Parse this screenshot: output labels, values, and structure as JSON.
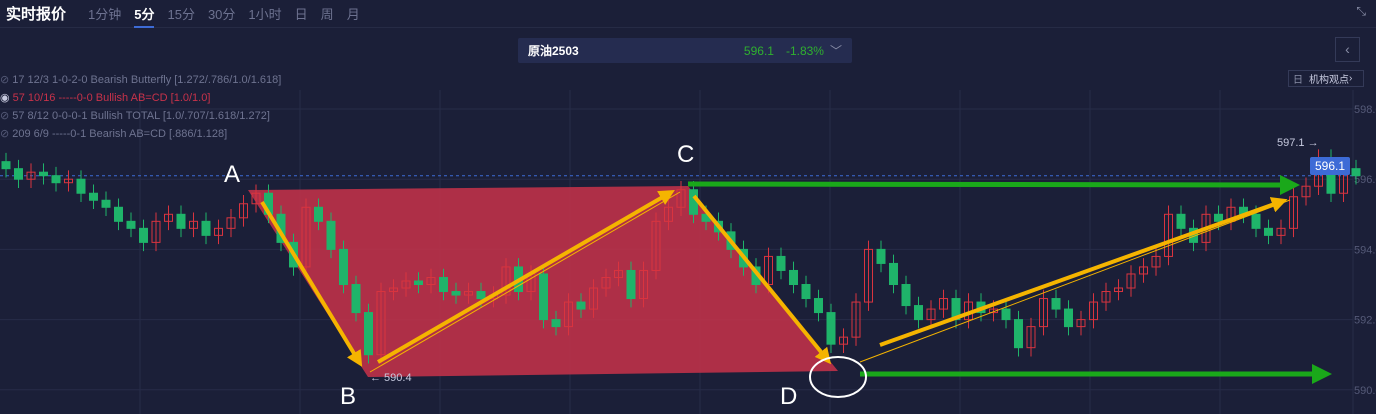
{
  "topbar": {
    "title": "实时报价",
    "tabs": [
      {
        "label": "1分钟"
      },
      {
        "label": "5分",
        "active": true
      },
      {
        "label": "15分"
      },
      {
        "label": "30分"
      },
      {
        "label": "1小时"
      },
      {
        "label": "日"
      },
      {
        "label": "周"
      },
      {
        "label": "月"
      }
    ]
  },
  "symbol": {
    "name": "原油2503",
    "price": "596.1",
    "change": "-1.83%"
  },
  "view_button": {
    "icon": "日",
    "label": "机构观点"
  },
  "patterns": [
    {
      "text": "17 12/3 1-0-2-0 Bearish Butterfly [1.272/.786/1.0/1.618]",
      "visible": false
    },
    {
      "text": "57 10/16 -----0-0 Bullish AB=CD [1.0/1.0]",
      "visible": true
    },
    {
      "text": "57 8/12 0-0-0-1 Bullish TOTAL [1.0/.707/1.618/1.272]",
      "visible": false
    },
    {
      "text": "209 6/9 -----0-1 Bearish AB=CD [.886/1.128]",
      "visible": false
    }
  ],
  "chart_data": {
    "type": "candlestick",
    "y_ticks": [
      "598.0",
      "596.0",
      "594.0",
      "592.0",
      "590.0"
    ],
    "ylim": [
      589.7,
      598.5
    ],
    "last_price": "596.1",
    "low_label": "← 590.4",
    "high_label": "597.1 →",
    "points": {
      "A": "A",
      "B": "B",
      "C": "C",
      "D": "D"
    },
    "colors": {
      "up": "#d9343f",
      "down": "#1fb46a",
      "pattern_fill": "#c8324a",
      "arrow": "#f5b400",
      "target": "#1aa81a",
      "price_tag": "#3d6bd6"
    },
    "close": [
      596.3,
      596.0,
      596.2,
      596.1,
      595.9,
      596.0,
      595.6,
      595.4,
      595.2,
      594.8,
      594.6,
      594.2,
      594.8,
      595.0,
      594.6,
      594.8,
      594.4,
      594.6,
      594.9,
      595.3,
      595.6,
      595.0,
      594.2,
      593.5,
      595.2,
      594.8,
      594.0,
      593.0,
      592.2,
      591.0,
      592.8,
      592.9,
      593.1,
      593.0,
      593.2,
      592.8,
      592.7,
      592.8,
      592.6,
      592.7,
      593.5,
      592.8,
      593.3,
      592.0,
      591.8,
      592.5,
      592.3,
      592.9,
      593.2,
      593.4,
      592.6,
      593.4,
      594.8,
      595.2,
      595.7,
      595.0,
      594.8,
      594.5,
      594.0,
      593.5,
      593.0,
      593.8,
      593.4,
      593.0,
      592.6,
      592.2,
      591.3,
      591.5,
      592.5,
      594.0,
      593.6,
      593.0,
      592.4,
      592.0,
      592.3,
      592.6,
      592.0,
      592.5,
      592.2,
      592.3,
      592.0,
      591.2,
      591.8,
      592.6,
      592.3,
      591.8,
      592.0,
      592.5,
      592.8,
      592.9,
      593.3,
      593.5,
      593.8,
      595.0,
      594.6,
      594.2,
      595.0,
      594.8,
      595.2,
      595.0,
      594.6,
      594.4,
      594.6,
      595.5,
      595.8,
      596.6,
      595.6,
      596.3,
      596.1
    ]
  }
}
